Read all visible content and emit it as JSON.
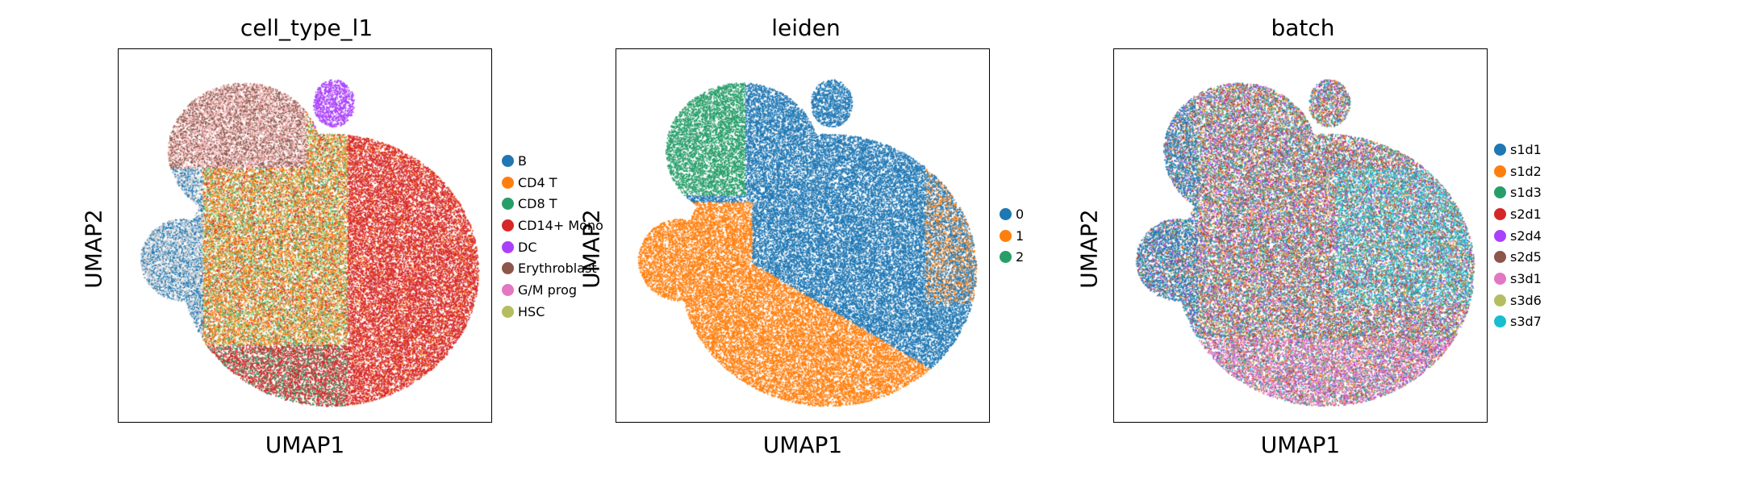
{
  "chart_data": [
    {
      "type": "scatter",
      "title": "cell_type_l1",
      "xlabel": "UMAP1",
      "ylabel": "UMAP2",
      "legend_position": "right",
      "legend": [
        {
          "label": "B",
          "color": "#1f77b4"
        },
        {
          "label": "CD4 T",
          "color": "#ff7f0e"
        },
        {
          "label": "CD8 T",
          "color": "#279e68"
        },
        {
          "label": "CD14+ Mono",
          "color": "#d62728"
        },
        {
          "label": "DC",
          "color": "#aa40fc"
        },
        {
          "label": "Erythroblast",
          "color": "#8c564b"
        },
        {
          "label": "G/M prog",
          "color": "#e377c2"
        },
        {
          "label": "HSC",
          "color": "#b5bd61"
        }
      ]
    },
    {
      "type": "scatter",
      "title": "leiden",
      "xlabel": "UMAP1",
      "ylabel": "UMAP2",
      "legend_position": "right",
      "legend": [
        {
          "label": "0",
          "color": "#1f77b4"
        },
        {
          "label": "1",
          "color": "#ff7f0e"
        },
        {
          "label": "2",
          "color": "#279e68"
        }
      ]
    },
    {
      "type": "scatter",
      "title": "batch",
      "xlabel": "UMAP1",
      "ylabel": "UMAP2",
      "legend_position": "right",
      "legend": [
        {
          "label": "s1d1",
          "color": "#1f77b4"
        },
        {
          "label": "s1d2",
          "color": "#ff7f0e"
        },
        {
          "label": "s1d3",
          "color": "#279e68"
        },
        {
          "label": "s2d1",
          "color": "#d62728"
        },
        {
          "label": "s2d4",
          "color": "#aa40fc"
        },
        {
          "label": "s2d5",
          "color": "#8c564b"
        },
        {
          "label": "s3d1",
          "color": "#e377c2"
        },
        {
          "label": "s3d6",
          "color": "#b5bd61"
        },
        {
          "label": "s3d7",
          "color": "#17becf"
        }
      ]
    }
  ]
}
